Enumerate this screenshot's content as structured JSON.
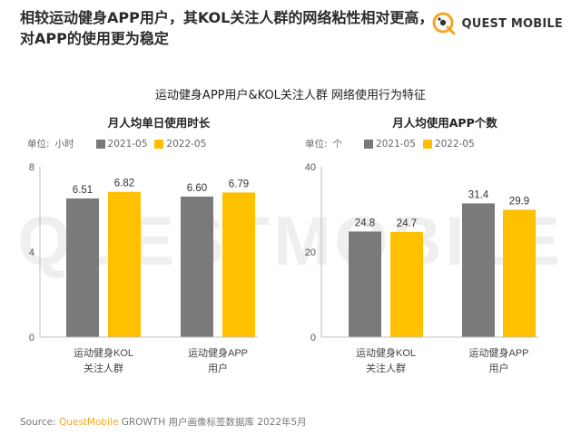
{
  "headline": "相较运动健身APP用户，其KOL关注人群的网络粘性相对更高，对APP的使用更为稳定",
  "brand": {
    "name": "QUEST MOBILE"
  },
  "watermark": "QUESTMOBILE",
  "main_title": "运动健身APP用户&KOL关注人群 网络使用行为特征",
  "source": {
    "prefix": "Source:",
    "brand": "QuestMobile",
    "text": "GROWTH 用户画像标签数据库 2022年5月"
  },
  "colors": {
    "series_2021": "#7a7a7a",
    "series_2022": "#ffc000",
    "accent": "#f5a623"
  },
  "chart_data": [
    {
      "type": "bar",
      "title": "月人均单日使用时长",
      "unit_label": "单位:",
      "unit": "小时",
      "categories": [
        [
          "运动健身KOL",
          "关注人群"
        ],
        [
          "运动健身APP",
          "用户"
        ]
      ],
      "series": [
        {
          "name": "2021-05",
          "values": [
            6.51,
            6.6
          ]
        },
        {
          "name": "2022-05",
          "values": [
            6.82,
            6.79
          ]
        }
      ],
      "ylim": [
        0,
        8
      ],
      "yticks": [
        "0",
        "4",
        "8"
      ],
      "grid": false,
      "legend_position": "top-left"
    },
    {
      "type": "bar",
      "title": "月人均使用APP个数",
      "unit_label": "单位:",
      "unit": "个",
      "categories": [
        [
          "运动健身KOL",
          "关注人群"
        ],
        [
          "运动健身APP",
          "用户"
        ]
      ],
      "series": [
        {
          "name": "2021-05",
          "values": [
            24.8,
            31.4
          ]
        },
        {
          "name": "2022-05",
          "values": [
            24.7,
            29.9
          ]
        }
      ],
      "ylim": [
        0,
        40
      ],
      "yticks": [
        "0",
        "20",
        "40"
      ],
      "grid": false,
      "legend_position": "top-left"
    }
  ]
}
